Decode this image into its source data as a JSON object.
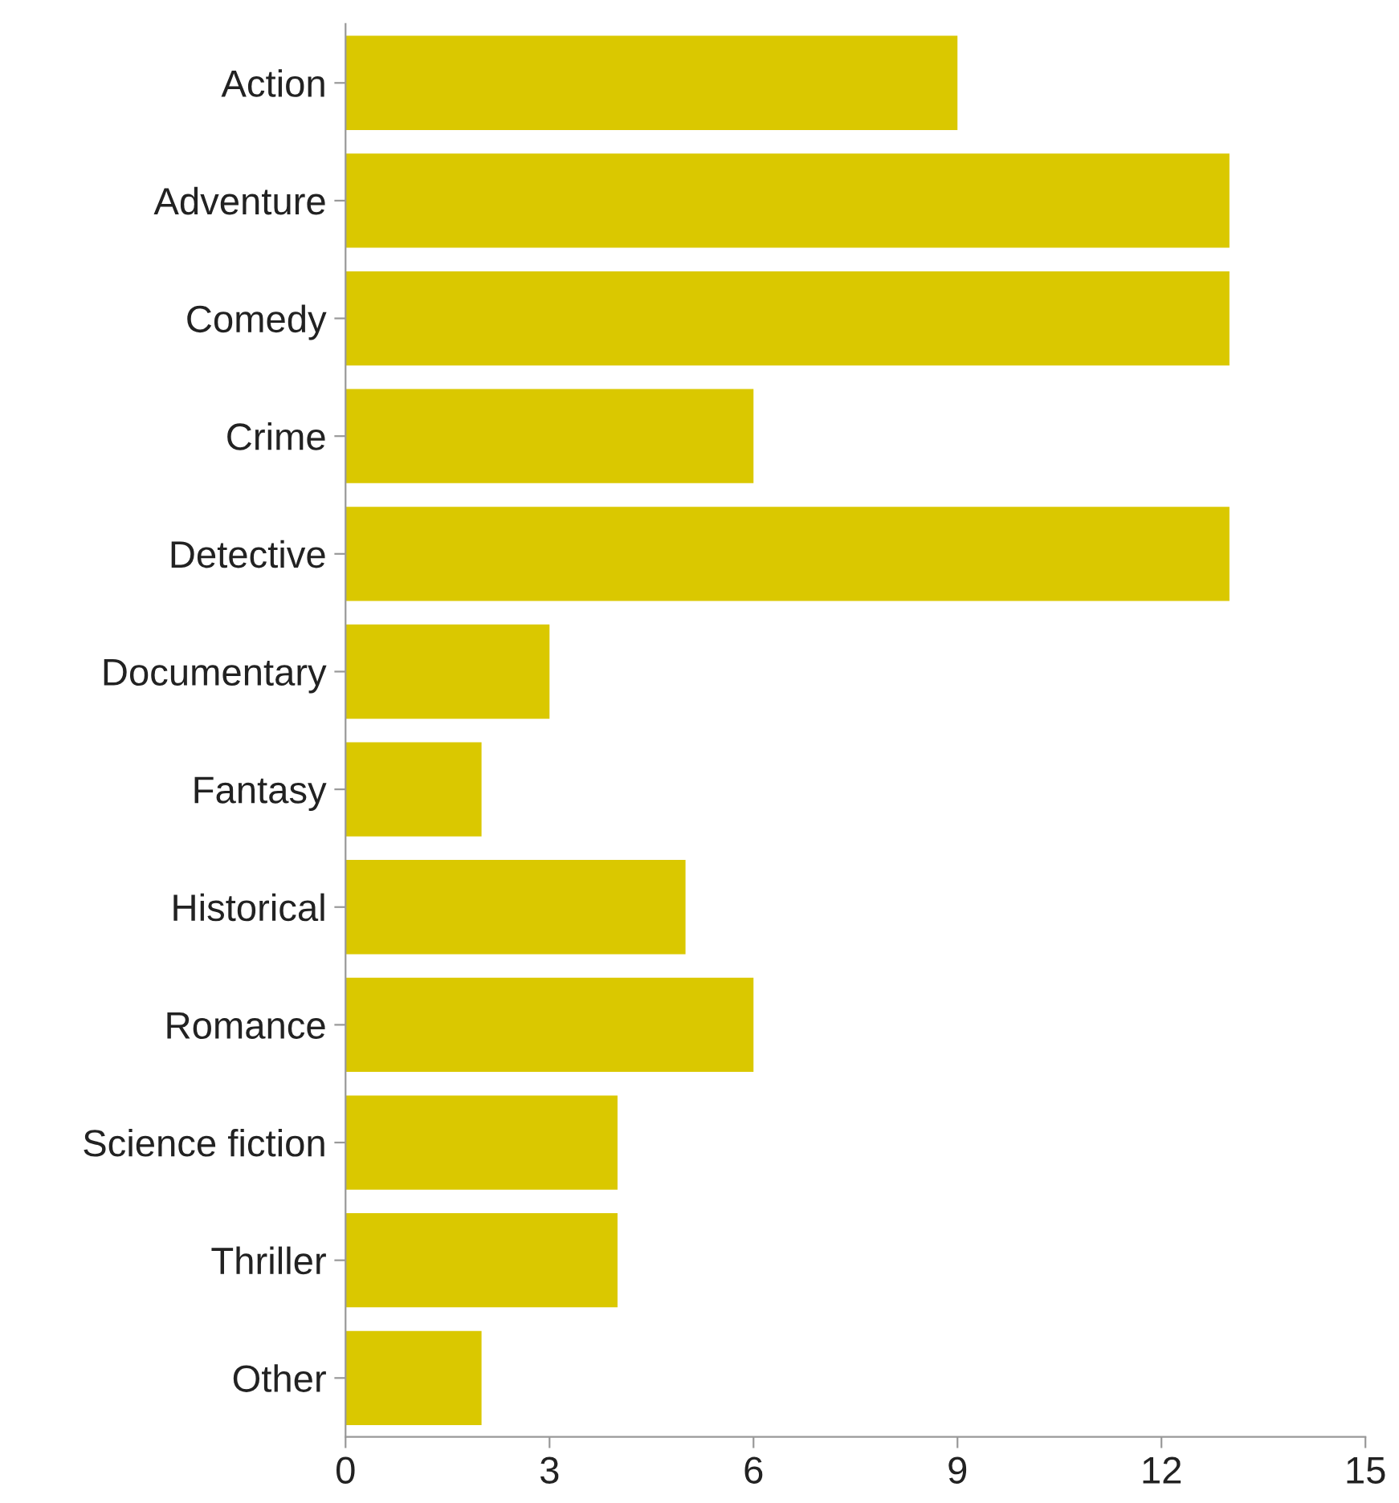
{
  "chart_data": {
    "type": "bar",
    "orientation": "horizontal",
    "categories": [
      "Action",
      "Adventure",
      "Comedy",
      "Crime",
      "Detective",
      "Documentary",
      "Fantasy",
      "Historical",
      "Romance",
      "Science fiction",
      "Thriller",
      "Other"
    ],
    "values": [
      9,
      13,
      13,
      6,
      13,
      3,
      2,
      5,
      6,
      4,
      4,
      2
    ],
    "color": "#dac800",
    "xlim": [
      0,
      15
    ],
    "xticks": [
      0,
      3,
      6,
      9,
      12,
      15
    ],
    "grid": false,
    "legend": false
  }
}
